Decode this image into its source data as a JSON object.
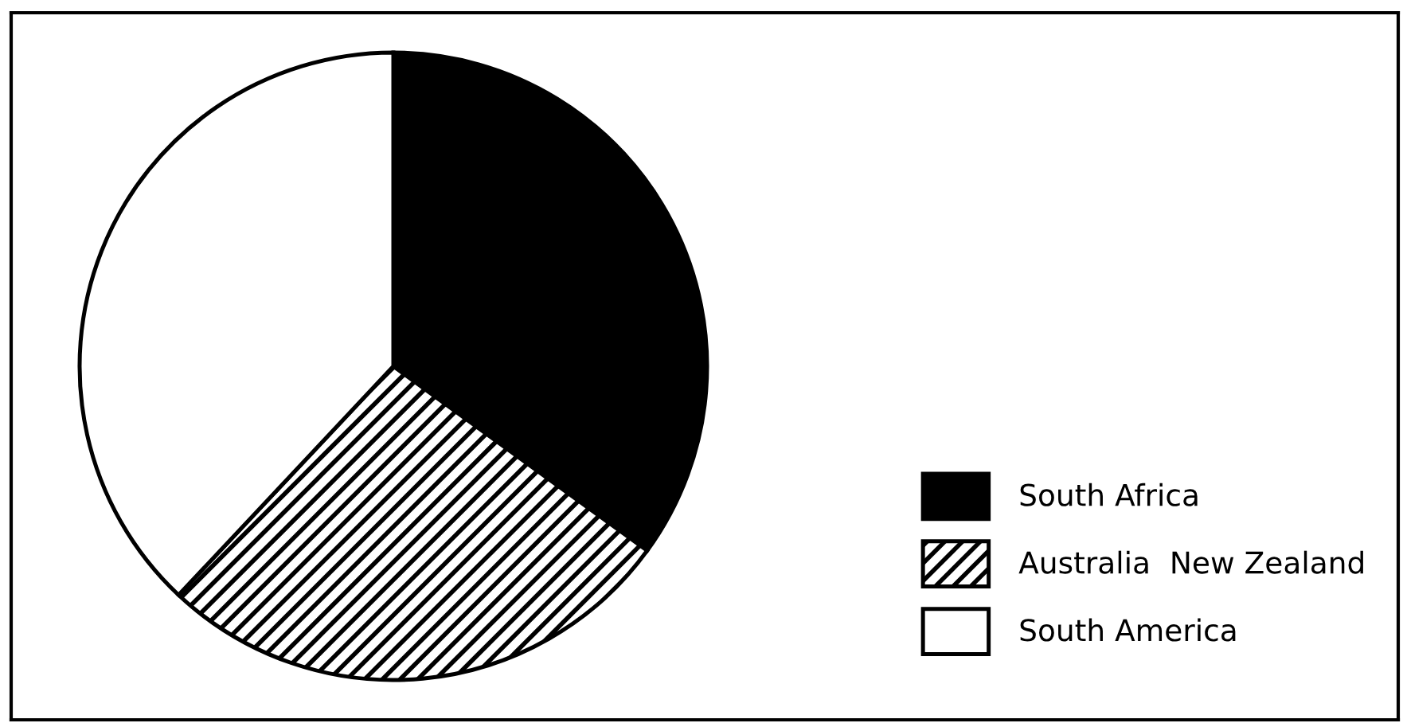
{
  "chart_data": {
    "type": "pie",
    "categories": [
      "South Africa",
      "Australia  New Zealand",
      "South America"
    ],
    "values": [
      35,
      27,
      38
    ],
    "colors": [
      "#000000",
      "#000000",
      "#ffffff"
    ],
    "legend": "bottom right"
  }
}
